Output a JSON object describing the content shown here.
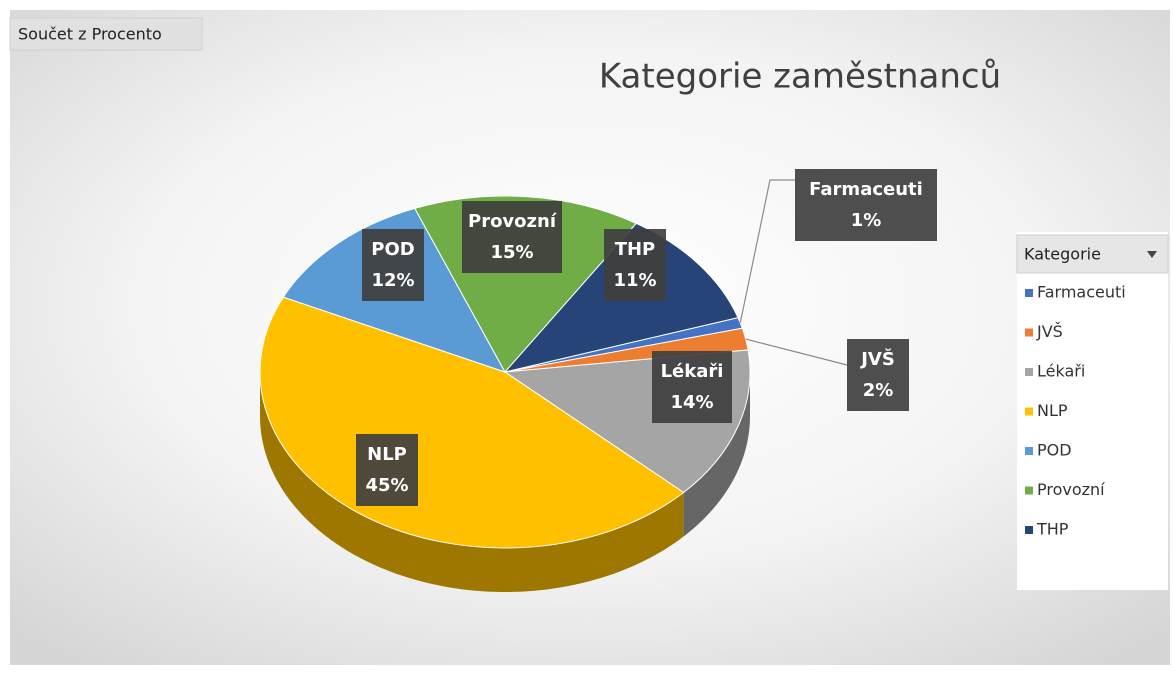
{
  "chart_data": {
    "type": "pie",
    "title": "Kategorie zaměstnanců",
    "field_button": "Součet z Procento",
    "legend_title": "Kategorie",
    "legend": "right",
    "categories": [
      "Farmaceuti",
      "JVŠ",
      "Lékaři",
      "NLP",
      "POD",
      "Provozní",
      "THP"
    ],
    "values": [
      1,
      2,
      14,
      45,
      12,
      15,
      11
    ],
    "value_labels": [
      "1%",
      "2%",
      "14%",
      "45%",
      "12%",
      "15%",
      "11%"
    ],
    "colors": [
      "#4472c4",
      "#ed7d31",
      "#a5a5a5",
      "#ffc000",
      "#5b9bd5",
      "#70ad47",
      "#264478"
    ]
  }
}
